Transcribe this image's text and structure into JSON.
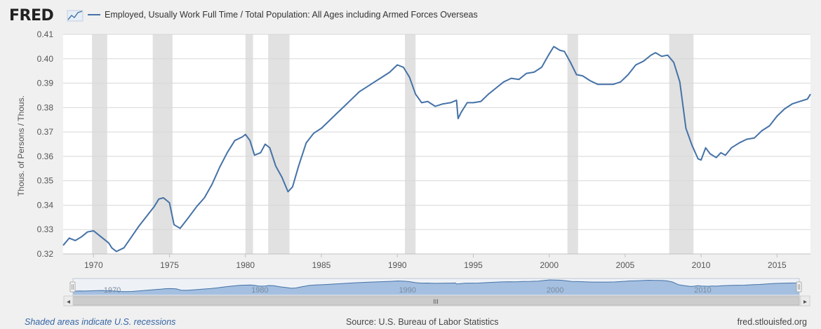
{
  "brand": "FRED",
  "series_title": "Employed, Usually Work Full Time / Total Population: All Ages including Armed Forces Overseas",
  "footer": {
    "recessions_note": "Shaded areas indicate U.S. recessions",
    "source": "Source: U.S. Bureau of Labor Statistics",
    "site": "fred.stlouisfed.org"
  },
  "navigator": {
    "scroll_grip": "III",
    "left_arrow": "◂",
    "right_arrow": "▸"
  },
  "colors": {
    "line": "#4572a7",
    "recession": "#e1e1e1",
    "navigator_fill": "#a4bfe0",
    "plot_bg": "#ffffff",
    "page_bg": "#f0f0f0"
  },
  "chart_data": {
    "type": "line",
    "title": "Employed, Usually Work Full Time / Total Population: All Ages including Armed Forces Overseas",
    "xlabel": "",
    "ylabel": "Thous. of Persons / Thous.",
    "xlim": [
      1968.0,
      2017.2
    ],
    "ylim": [
      0.32,
      0.41
    ],
    "x_ticks": [
      1970,
      1975,
      1980,
      1985,
      1990,
      1995,
      2000,
      2005,
      2010,
      2015
    ],
    "y_ticks": [
      0.32,
      0.33,
      0.34,
      0.35,
      0.36,
      0.37,
      0.38,
      0.39,
      0.4,
      0.41
    ],
    "y_tick_labels": [
      "0.32",
      "0.33",
      "0.34",
      "0.35",
      "0.36",
      "0.37",
      "0.38",
      "0.39",
      "0.40",
      "0.41"
    ],
    "navigator_labels": [
      "1970",
      "1980",
      "1990",
      "2000",
      "2010"
    ],
    "grid": true,
    "recessions": [
      [
        1969.9,
        1970.9
      ],
      [
        1973.9,
        1975.2
      ],
      [
        1980.0,
        1980.5
      ],
      [
        1981.5,
        1982.9
      ],
      [
        1990.5,
        1991.2
      ],
      [
        2001.2,
        2001.9
      ],
      [
        2007.9,
        2009.5
      ]
    ],
    "series": [
      {
        "x": [
          1968.0,
          1968.4,
          1968.8,
          1969.2,
          1969.6,
          1970.0,
          1970.5,
          1971.0,
          1971.2,
          1971.5,
          1972.0,
          1972.5,
          1973.0,
          1973.5,
          1974.0,
          1974.3,
          1974.6,
          1975.0,
          1975.3,
          1975.7,
          1976.2,
          1976.8,
          1977.3,
          1977.8,
          1978.3,
          1978.8,
          1979.3,
          1979.8,
          1980.0,
          1980.3,
          1980.6,
          1981.0,
          1981.3,
          1981.6,
          1982.0,
          1982.4,
          1982.8,
          1983.1,
          1983.5,
          1984.0,
          1984.5,
          1985.0,
          1985.5,
          1986.0,
          1986.5,
          1987.0,
          1987.5,
          1988.0,
          1988.5,
          1989.0,
          1989.5,
          1990.0,
          1990.4,
          1990.8,
          1991.2,
          1991.6,
          1992.0,
          1992.5,
          1993.0,
          1993.5,
          1993.9,
          1994.0,
          1994.2,
          1994.6,
          1995.0,
          1995.5,
          1996.0,
          1996.5,
          1997.0,
          1997.5,
          1998.0,
          1998.5,
          1999.0,
          1999.5,
          2000.0,
          2000.3,
          2000.7,
          2001.0,
          2001.4,
          2001.8,
          2002.2,
          2002.7,
          2003.2,
          2003.7,
          2004.2,
          2004.7,
          2005.2,
          2005.7,
          2006.2,
          2006.7,
          2007.0,
          2007.4,
          2007.8,
          2008.2,
          2008.6,
          2009.0,
          2009.4,
          2009.8,
          2010.0,
          2010.3,
          2010.6,
          2011.0,
          2011.3,
          2011.6,
          2012.0,
          2012.5,
          2013.0,
          2013.5,
          2014.0,
          2014.5,
          2015.0,
          2015.5,
          2016.0,
          2016.5,
          2017.0,
          2017.2
        ],
        "y": [
          0.3235,
          0.3265,
          0.3255,
          0.327,
          0.329,
          0.3295,
          0.327,
          0.3245,
          0.3225,
          0.321,
          0.3225,
          0.327,
          0.3315,
          0.3355,
          0.3395,
          0.3425,
          0.343,
          0.341,
          0.332,
          0.3305,
          0.3345,
          0.3395,
          0.343,
          0.3485,
          0.3555,
          0.3615,
          0.3665,
          0.368,
          0.369,
          0.3665,
          0.3605,
          0.3615,
          0.365,
          0.3635,
          0.356,
          0.3515,
          0.3455,
          0.3475,
          0.356,
          0.3655,
          0.3695,
          0.3715,
          0.3745,
          0.3775,
          0.3805,
          0.3835,
          0.3865,
          0.3885,
          0.3905,
          0.3925,
          0.3945,
          0.3975,
          0.3965,
          0.3925,
          0.3855,
          0.382,
          0.3825,
          0.3805,
          0.3815,
          0.382,
          0.383,
          0.3755,
          0.378,
          0.382,
          0.382,
          0.3825,
          0.3855,
          0.388,
          0.3905,
          0.392,
          0.3915,
          0.394,
          0.3945,
          0.3965,
          0.402,
          0.405,
          0.4035,
          0.403,
          0.3985,
          0.3935,
          0.393,
          0.391,
          0.3895,
          0.3895,
          0.3895,
          0.3905,
          0.3935,
          0.3975,
          0.399,
          0.4015,
          0.4025,
          0.401,
          0.4015,
          0.3985,
          0.3905,
          0.3715,
          0.3645,
          0.359,
          0.3585,
          0.3635,
          0.361,
          0.3595,
          0.3615,
          0.3605,
          0.3635,
          0.3655,
          0.367,
          0.3675,
          0.3705,
          0.3725,
          0.3765,
          0.3795,
          0.3815,
          0.3825,
          0.3835,
          0.3855
        ]
      }
    ]
  }
}
